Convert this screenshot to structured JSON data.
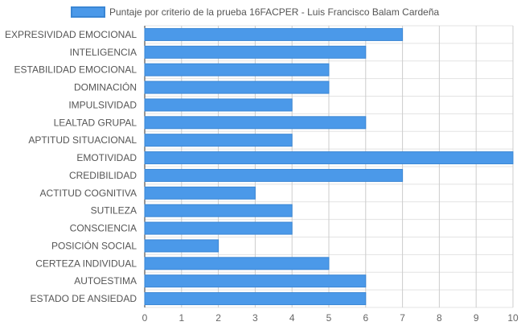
{
  "colors": {
    "bar_fill": "#4b99e9",
    "bar_stroke": "#3a86d4",
    "grid": "#e3e3e3",
    "axis_text": "#666666"
  },
  "chart_data": {
    "type": "bar",
    "orientation": "horizontal",
    "legend_position": "top",
    "grid": true,
    "series": [
      {
        "name": "Puntaje por criterio de la prueba 16FACPER - Luis Francisco Balam Cardeña",
        "values": [
          7,
          6,
          5,
          5,
          4,
          6,
          4,
          10,
          7,
          3,
          4,
          4,
          2,
          5,
          6,
          6
        ]
      }
    ],
    "categories": [
      "EXPRESIVIDAD EMOCIONAL",
      "INTELIGENCIA",
      "ESTABILIDAD EMOCIONAL",
      "DOMINACIÓN",
      "IMPULSIVIDAD",
      "LEALTAD GRUPAL",
      "APTITUD SITUACIONAL",
      "EMOTIVIDAD",
      "CREDIBILIDAD",
      "ACTITUD COGNITIVA",
      "SUTILEZA",
      "CONSCIENCIA",
      "POSICIÓN SOCIAL",
      "CERTEZA INDIVIDUAL",
      "AUTOESTIMA",
      "ESTADO DE ANSIEDAD"
    ],
    "xlim": [
      0,
      10
    ],
    "xticks": [
      "0",
      "1",
      "2",
      "3",
      "4",
      "5",
      "6",
      "7",
      "8",
      "9",
      "10"
    ]
  }
}
